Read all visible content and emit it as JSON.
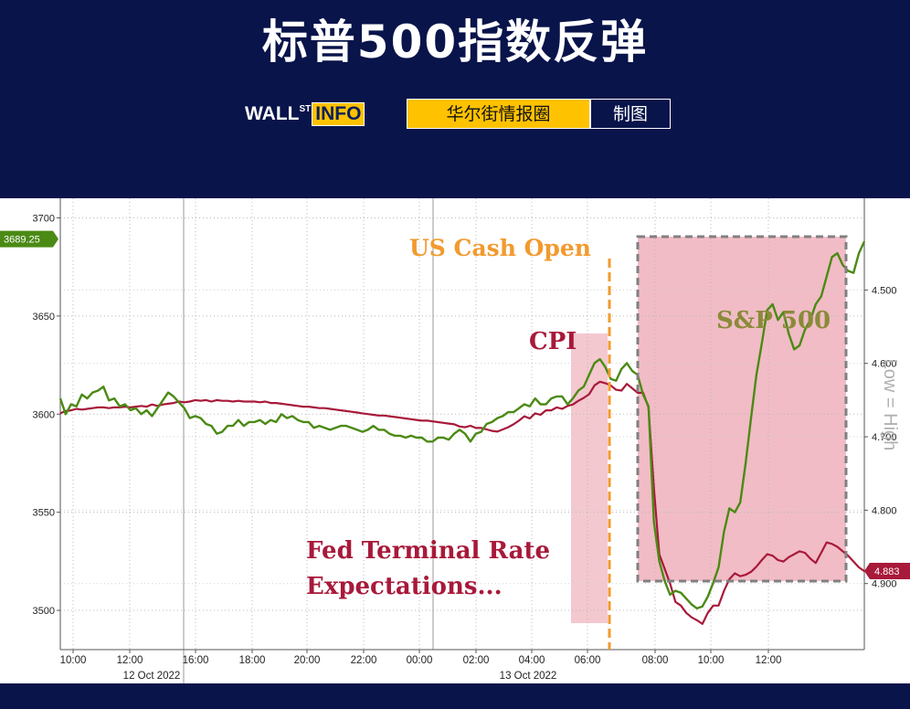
{
  "header": {
    "title": "标普500指数反弹",
    "brand_logo": "WALL",
    "brand_logo_sup": "ST",
    "brand_logo_box": "INFO",
    "brand_tag": "华尔街情报圈",
    "brand_made": "制图"
  },
  "chart_data": {
    "type": "line",
    "x_date_labels": [
      "12 Oct 2022",
      "13 Oct 2022"
    ],
    "x_tick_labels": [
      "10:00",
      "12:00",
      "16:00",
      "18:00",
      "20:00",
      "22:00",
      "00:00",
      "02:00",
      "04:00",
      "06:00",
      "08:00",
      "10:00",
      "12:00"
    ],
    "y_left": {
      "ylim": [
        3480,
        3710
      ],
      "ticks": [
        3700,
        3650,
        3600,
        3550,
        3500
      ],
      "tick_labels": [
        "3700",
        "3650",
        "3600",
        "3550",
        "3500"
      ]
    },
    "y_right": {
      "inverted": true,
      "ylim": [
        4.99,
        4.375
      ],
      "ticks": [
        4.5,
        4.6,
        4.7,
        4.8,
        4.9
      ],
      "tick_labels": [
        "4.500",
        "4.600",
        "4.700",
        "4.800",
        "4.900"
      ],
      "label": "Low = High"
    },
    "grid": true,
    "last_values": {
      "sp500": "3689.25",
      "fed_terminal": "4.883"
    },
    "colors": {
      "sp500": "#4b8a14",
      "sp500_faded": "#8a8a3a",
      "fed": "#a8193a",
      "cash_open": "#f29a2e",
      "shade": "#f0b5bf",
      "box_border": "#808080",
      "right_label": "#b0b0b0"
    },
    "annotations": {
      "cash_open": "US Cash Open",
      "cpi": "CPI",
      "sp500": "S&P 500",
      "fed_line1": "Fed Terminal Rate",
      "fed_line2": "Expectations..."
    },
    "series": [
      {
        "name": "S&P 500",
        "axis": "left",
        "x": [
          0,
          2,
          4,
          6,
          8,
          10,
          12,
          14,
          16,
          18,
          20,
          22,
          24,
          26,
          28,
          30,
          32,
          34,
          36,
          38,
          40,
          42,
          44,
          46,
          48,
          50,
          52,
          54,
          56,
          58,
          60,
          62,
          64,
          66,
          68,
          70,
          72,
          74,
          76,
          78,
          80,
          82,
          84,
          86,
          88,
          90,
          92,
          94,
          96,
          98,
          100,
          102,
          104,
          106,
          108,
          110,
          112,
          114,
          116,
          118,
          120,
          122,
          124,
          126,
          128,
          130,
          132,
          134,
          136,
          138,
          140,
          142,
          144,
          146,
          148,
          150,
          152,
          154,
          156,
          158,
          160,
          162,
          164,
          166,
          168,
          170,
          172,
          174,
          176,
          178,
          180,
          182,
          184,
          186,
          188,
          190,
          192,
          194,
          196,
          198,
          200,
          202,
          204,
          206,
          208,
          210,
          212,
          214,
          216,
          218,
          220,
          222,
          224,
          226,
          228,
          230,
          232,
          234,
          236,
          238,
          240,
          242,
          244,
          246,
          248,
          250,
          252,
          254,
          256,
          258,
          260,
          262,
          264,
          266,
          268,
          270,
          272,
          274,
          276,
          278,
          280,
          282,
          284,
          286,
          288,
          290,
          292,
          294,
          296,
          298
        ],
        "y": [
          3608,
          3600,
          3605,
          3604,
          3610,
          3608,
          3611,
          3612,
          3614,
          3607,
          3608,
          3604,
          3605,
          3602,
          3603,
          3600,
          3602,
          3599,
          3603,
          3607,
          3611,
          3609,
          3606,
          3603,
          3598,
          3599,
          3598,
          3595,
          3594,
          3590,
          3591,
          3594,
          3594,
          3597,
          3594,
          3596,
          3596,
          3597,
          3595,
          3597,
          3596,
          3600,
          3598,
          3599,
          3597,
          3596,
          3596,
          3593,
          3594,
          3593,
          3592,
          3593,
          3594,
          3594,
          3593,
          3592,
          3591,
          3592,
          3594,
          3592,
          3592,
          3590,
          3589,
          3589,
          3588,
          3589,
          3588,
          3588,
          3586,
          3586,
          3588,
          3588,
          3587,
          3590,
          3592,
          3590,
          3586,
          3590,
          3591,
          3595,
          3596,
          3598,
          3599,
          3601,
          3601,
          3603,
          3605,
          3604,
          3608,
          3605,
          3605,
          3608,
          3609,
          3609,
          3605,
          3608,
          3612,
          3614,
          3620,
          3626,
          3628,
          3624,
          3618,
          3617,
          3623,
          3626,
          3622,
          3620,
          3610,
          3604,
          3545,
          3525,
          3515,
          3508,
          3510,
          3509,
          3506,
          3503,
          3501,
          3502,
          3507,
          3514,
          3522,
          3540,
          3552,
          3550,
          3555,
          3575,
          3598,
          3620,
          3636,
          3653,
          3656,
          3648,
          3652,
          3641,
          3633,
          3635,
          3643,
          3648,
          3656,
          3660,
          3670,
          3680,
          3682,
          3676,
          3673,
          3672,
          3682,
          3688
        ]
      },
      {
        "name": "Fed Terminal Rate Expectations",
        "axis": "right",
        "x": [
          0,
          2,
          4,
          6,
          8,
          10,
          12,
          14,
          16,
          18,
          20,
          22,
          24,
          26,
          28,
          30,
          32,
          34,
          36,
          38,
          40,
          42,
          44,
          46,
          48,
          50,
          52,
          54,
          56,
          58,
          60,
          62,
          64,
          66,
          68,
          70,
          72,
          74,
          76,
          78,
          80,
          82,
          84,
          86,
          88,
          90,
          92,
          94,
          96,
          98,
          100,
          102,
          104,
          106,
          108,
          110,
          112,
          114,
          116,
          118,
          120,
          122,
          124,
          126,
          128,
          130,
          132,
          134,
          136,
          138,
          140,
          142,
          144,
          146,
          148,
          150,
          152,
          154,
          156,
          158,
          160,
          162,
          164,
          166,
          168,
          170,
          172,
          174,
          176,
          178,
          180,
          182,
          184,
          186,
          188,
          190,
          192,
          194,
          196,
          198,
          200,
          202,
          204,
          206,
          208,
          210,
          212,
          214,
          216,
          218,
          220,
          222,
          224,
          226,
          228,
          230,
          232,
          234,
          236,
          238,
          240,
          242,
          244,
          246,
          248,
          250,
          252,
          254,
          256,
          258,
          260,
          262,
          264,
          266,
          268,
          270,
          272,
          274,
          276,
          278,
          280,
          282,
          284,
          286,
          288,
          290,
          292,
          294,
          296,
          298
        ],
        "y": [
          4.668,
          4.665,
          4.664,
          4.662,
          4.663,
          4.662,
          4.661,
          4.66,
          4.66,
          4.661,
          4.66,
          4.66,
          4.659,
          4.66,
          4.659,
          4.658,
          4.659,
          4.656,
          4.658,
          4.656,
          4.655,
          4.654,
          4.652,
          4.653,
          4.652,
          4.65,
          4.651,
          4.65,
          4.652,
          4.65,
          4.651,
          4.651,
          4.652,
          4.651,
          4.652,
          4.652,
          4.652,
          4.653,
          4.652,
          4.654,
          4.654,
          4.655,
          4.656,
          4.657,
          4.658,
          4.659,
          4.659,
          4.66,
          4.661,
          4.661,
          4.662,
          4.663,
          4.664,
          4.665,
          4.666,
          4.667,
          4.668,
          4.669,
          4.67,
          4.671,
          4.671,
          4.672,
          4.673,
          4.674,
          4.675,
          4.676,
          4.677,
          4.678,
          4.678,
          4.679,
          4.68,
          4.681,
          4.682,
          4.683,
          4.686,
          4.687,
          4.685,
          4.688,
          4.688,
          4.69,
          4.692,
          4.693,
          4.69,
          4.687,
          4.683,
          4.678,
          4.672,
          4.675,
          4.668,
          4.67,
          4.664,
          4.664,
          4.66,
          4.662,
          4.658,
          4.656,
          4.651,
          4.647,
          4.642,
          4.63,
          4.625,
          4.627,
          4.63,
          4.636,
          4.637,
          4.628,
          4.634,
          4.64,
          4.64,
          4.66,
          4.77,
          4.86,
          4.88,
          4.9,
          4.925,
          4.93,
          4.94,
          4.946,
          4.95,
          4.955,
          4.94,
          4.93,
          4.93,
          4.91,
          4.894,
          4.886,
          4.89,
          4.888,
          4.884,
          4.877,
          4.868,
          4.86,
          4.862,
          4.868,
          4.87,
          4.864,
          4.86,
          4.856,
          4.858,
          4.866,
          4.872,
          4.858,
          4.844,
          4.846,
          4.85,
          4.856,
          4.862,
          4.87,
          4.878,
          4.883
        ]
      }
    ]
  }
}
